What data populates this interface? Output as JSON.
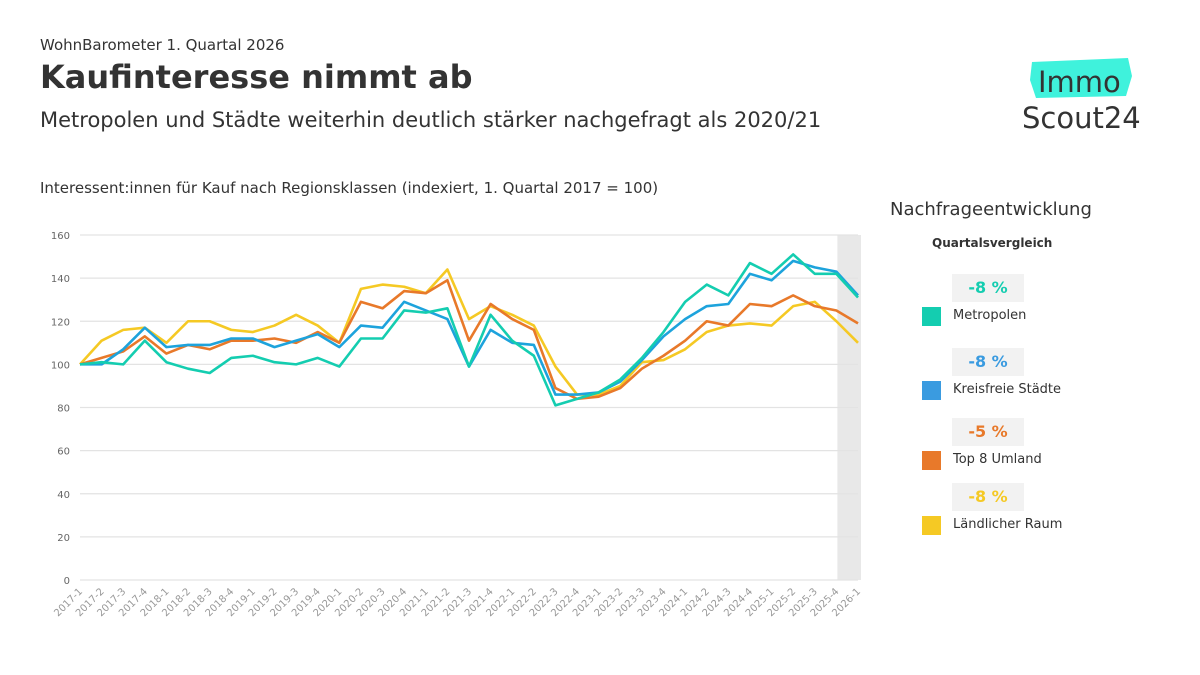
{
  "header": {
    "kicker": "WohnBarometer 1. Quartal 2026",
    "title": "Kaufinteresse nimmt ab",
    "subtitle": "Metropolen und Städte weiterhin deutlich stärker nachgefragt als 2020/21"
  },
  "logo": {
    "text_top": "Immo",
    "text_bottom": "Scout24",
    "accent": "#3ff2dc"
  },
  "legend": {
    "title": "Nachfrageentwicklung",
    "subtitle": "Quartalsvergleich",
    "items": [
      {
        "label": "Metropolen",
        "change": "-8 %",
        "color": "#14cdb0"
      },
      {
        "label": "Kreisfreie Städte",
        "change": "-8 %",
        "color": "#3a9be0"
      },
      {
        "label": "Top 8 Umland",
        "change": "-5 %",
        "color": "#e8792a"
      },
      {
        "label": "Ländlicher Raum",
        "change": "-8 %",
        "color": "#f5c924"
      }
    ]
  },
  "chart_data": {
    "type": "line",
    "title": "Interessent:innen für Kauf nach Regionsklassen (indexiert, 1. Quartal 2017 = 100)",
    "ylim": [
      0,
      160
    ],
    "yticks": [
      0,
      20,
      40,
      60,
      80,
      100,
      120,
      140,
      160
    ],
    "grid": true,
    "highlighted_category": "2026-1",
    "categories": [
      "2017-1",
      "2017-2",
      "2017-3",
      "2017-4",
      "2018-1",
      "2018-2",
      "2018-3",
      "2018-4",
      "2019-1",
      "2019-2",
      "2019-3",
      "2019-4",
      "2020-1",
      "2020-2",
      "2020-3",
      "2020-4",
      "2021-1",
      "2021-2",
      "2021-3",
      "2021-4",
      "2022-1",
      "2022-2",
      "2022-3",
      "2022-4",
      "2023-1",
      "2023-2",
      "2023-3",
      "2023-4",
      "2024-1",
      "2024-2",
      "2024-3",
      "2024-4",
      "2025-1",
      "2025-2",
      "2025-3",
      "2025-4",
      "2026-1"
    ],
    "series": [
      {
        "name": "Ländlicher Raum",
        "color": "#f5c924",
        "values": [
          100,
          111,
          116,
          117,
          110,
          120,
          120,
          116,
          115,
          118,
          123,
          118,
          110,
          135,
          137,
          136,
          133,
          144,
          121,
          127,
          123,
          118,
          99,
          86,
          86,
          90,
          101,
          102,
          107,
          115,
          118,
          119,
          118,
          127,
          129,
          120,
          110
        ]
      },
      {
        "name": "Top 8 Umland",
        "color": "#e8792a",
        "values": [
          100,
          103,
          106,
          113,
          105,
          109,
          107,
          111,
          111,
          112,
          110,
          115,
          110,
          129,
          126,
          134,
          133,
          139,
          111,
          128,
          121,
          116,
          89,
          84,
          85,
          89,
          98,
          104,
          111,
          120,
          118,
          128,
          127,
          132,
          127,
          125,
          119
        ]
      },
      {
        "name": "Kreisfreie Städte",
        "color": "#1da3dc",
        "values": [
          100,
          100,
          107,
          117,
          108,
          109,
          109,
          112,
          112,
          108,
          111,
          114,
          108,
          118,
          117,
          129,
          125,
          121,
          99,
          116,
          110,
          109,
          86,
          86,
          87,
          92,
          102,
          113,
          121,
          127,
          128,
          142,
          139,
          148,
          145,
          143,
          132
        ]
      },
      {
        "name": "Metropolen",
        "color": "#14cdb0",
        "values": [
          100,
          101,
          100,
          111,
          101,
          98,
          96,
          103,
          104,
          101,
          100,
          103,
          99,
          112,
          112,
          125,
          124,
          126,
          99,
          123,
          111,
          104,
          81,
          84,
          87,
          93,
          103,
          115,
          129,
          137,
          132,
          147,
          142,
          151,
          142,
          142,
          131
        ]
      }
    ]
  }
}
